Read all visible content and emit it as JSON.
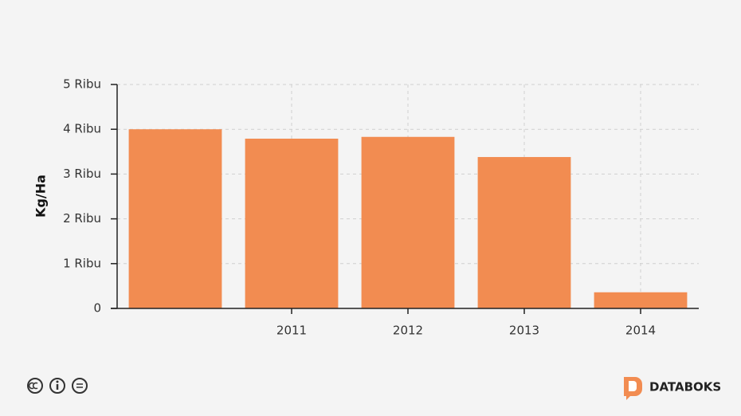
{
  "chart_data": {
    "type": "bar",
    "y_label": "Kg/Ha",
    "categories": [
      null,
      "2011",
      "2012",
      "2013",
      "2014"
    ],
    "values": [
      4000,
      3790,
      3830,
      3380,
      360
    ],
    "color": "#f28c51",
    "ylim": [
      0,
      5000
    ],
    "yticks": [
      0,
      {
        "value": 1000,
        "label": "1 Ribu"
      },
      {
        "value": 2000,
        "label": "2 Ribu"
      },
      {
        "value": 3000,
        "label": "3 Ribu"
      },
      {
        "value": 4000,
        "label": "4 Ribu"
      },
      {
        "value": 5000,
        "label": "5 Ribu"
      }
    ],
    "grid": true
  },
  "footer": {
    "brand": "DATABOKS"
  }
}
